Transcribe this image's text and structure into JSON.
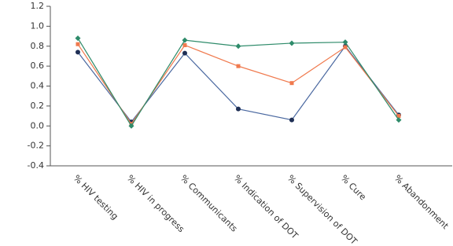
{
  "chart_data": {
    "type": "line",
    "categories": [
      "% HIV testing",
      "% HIV in progress",
      "% Communicants",
      "% Indication of DOT",
      "% Supervision of DOT",
      "% Cure",
      "% Abandonment"
    ],
    "series": [
      {
        "color": "#4a68a0",
        "values": [
          0.74,
          0.04,
          0.73,
          0.17,
          0.06,
          0.8,
          0.11
        ]
      },
      {
        "color": "#f07a4e",
        "values": [
          0.82,
          0.02,
          0.81,
          0.6,
          0.43,
          0.79,
          0.1
        ]
      },
      {
        "color": "#2e8b6a",
        "values": [
          0.88,
          0.0,
          0.86,
          0.8,
          0.83,
          0.84,
          0.06
        ]
      }
    ],
    "ylim": [
      -0.4,
      1.2
    ],
    "yticks": [
      -0.4,
      -0.2,
      {
        "value": 0,
        "label": "0.0"
      },
      0.2,
      0.4,
      0.6,
      0.8,
      {
        "value": 1,
        "label": "1.0"
      },
      1.2
    ]
  }
}
